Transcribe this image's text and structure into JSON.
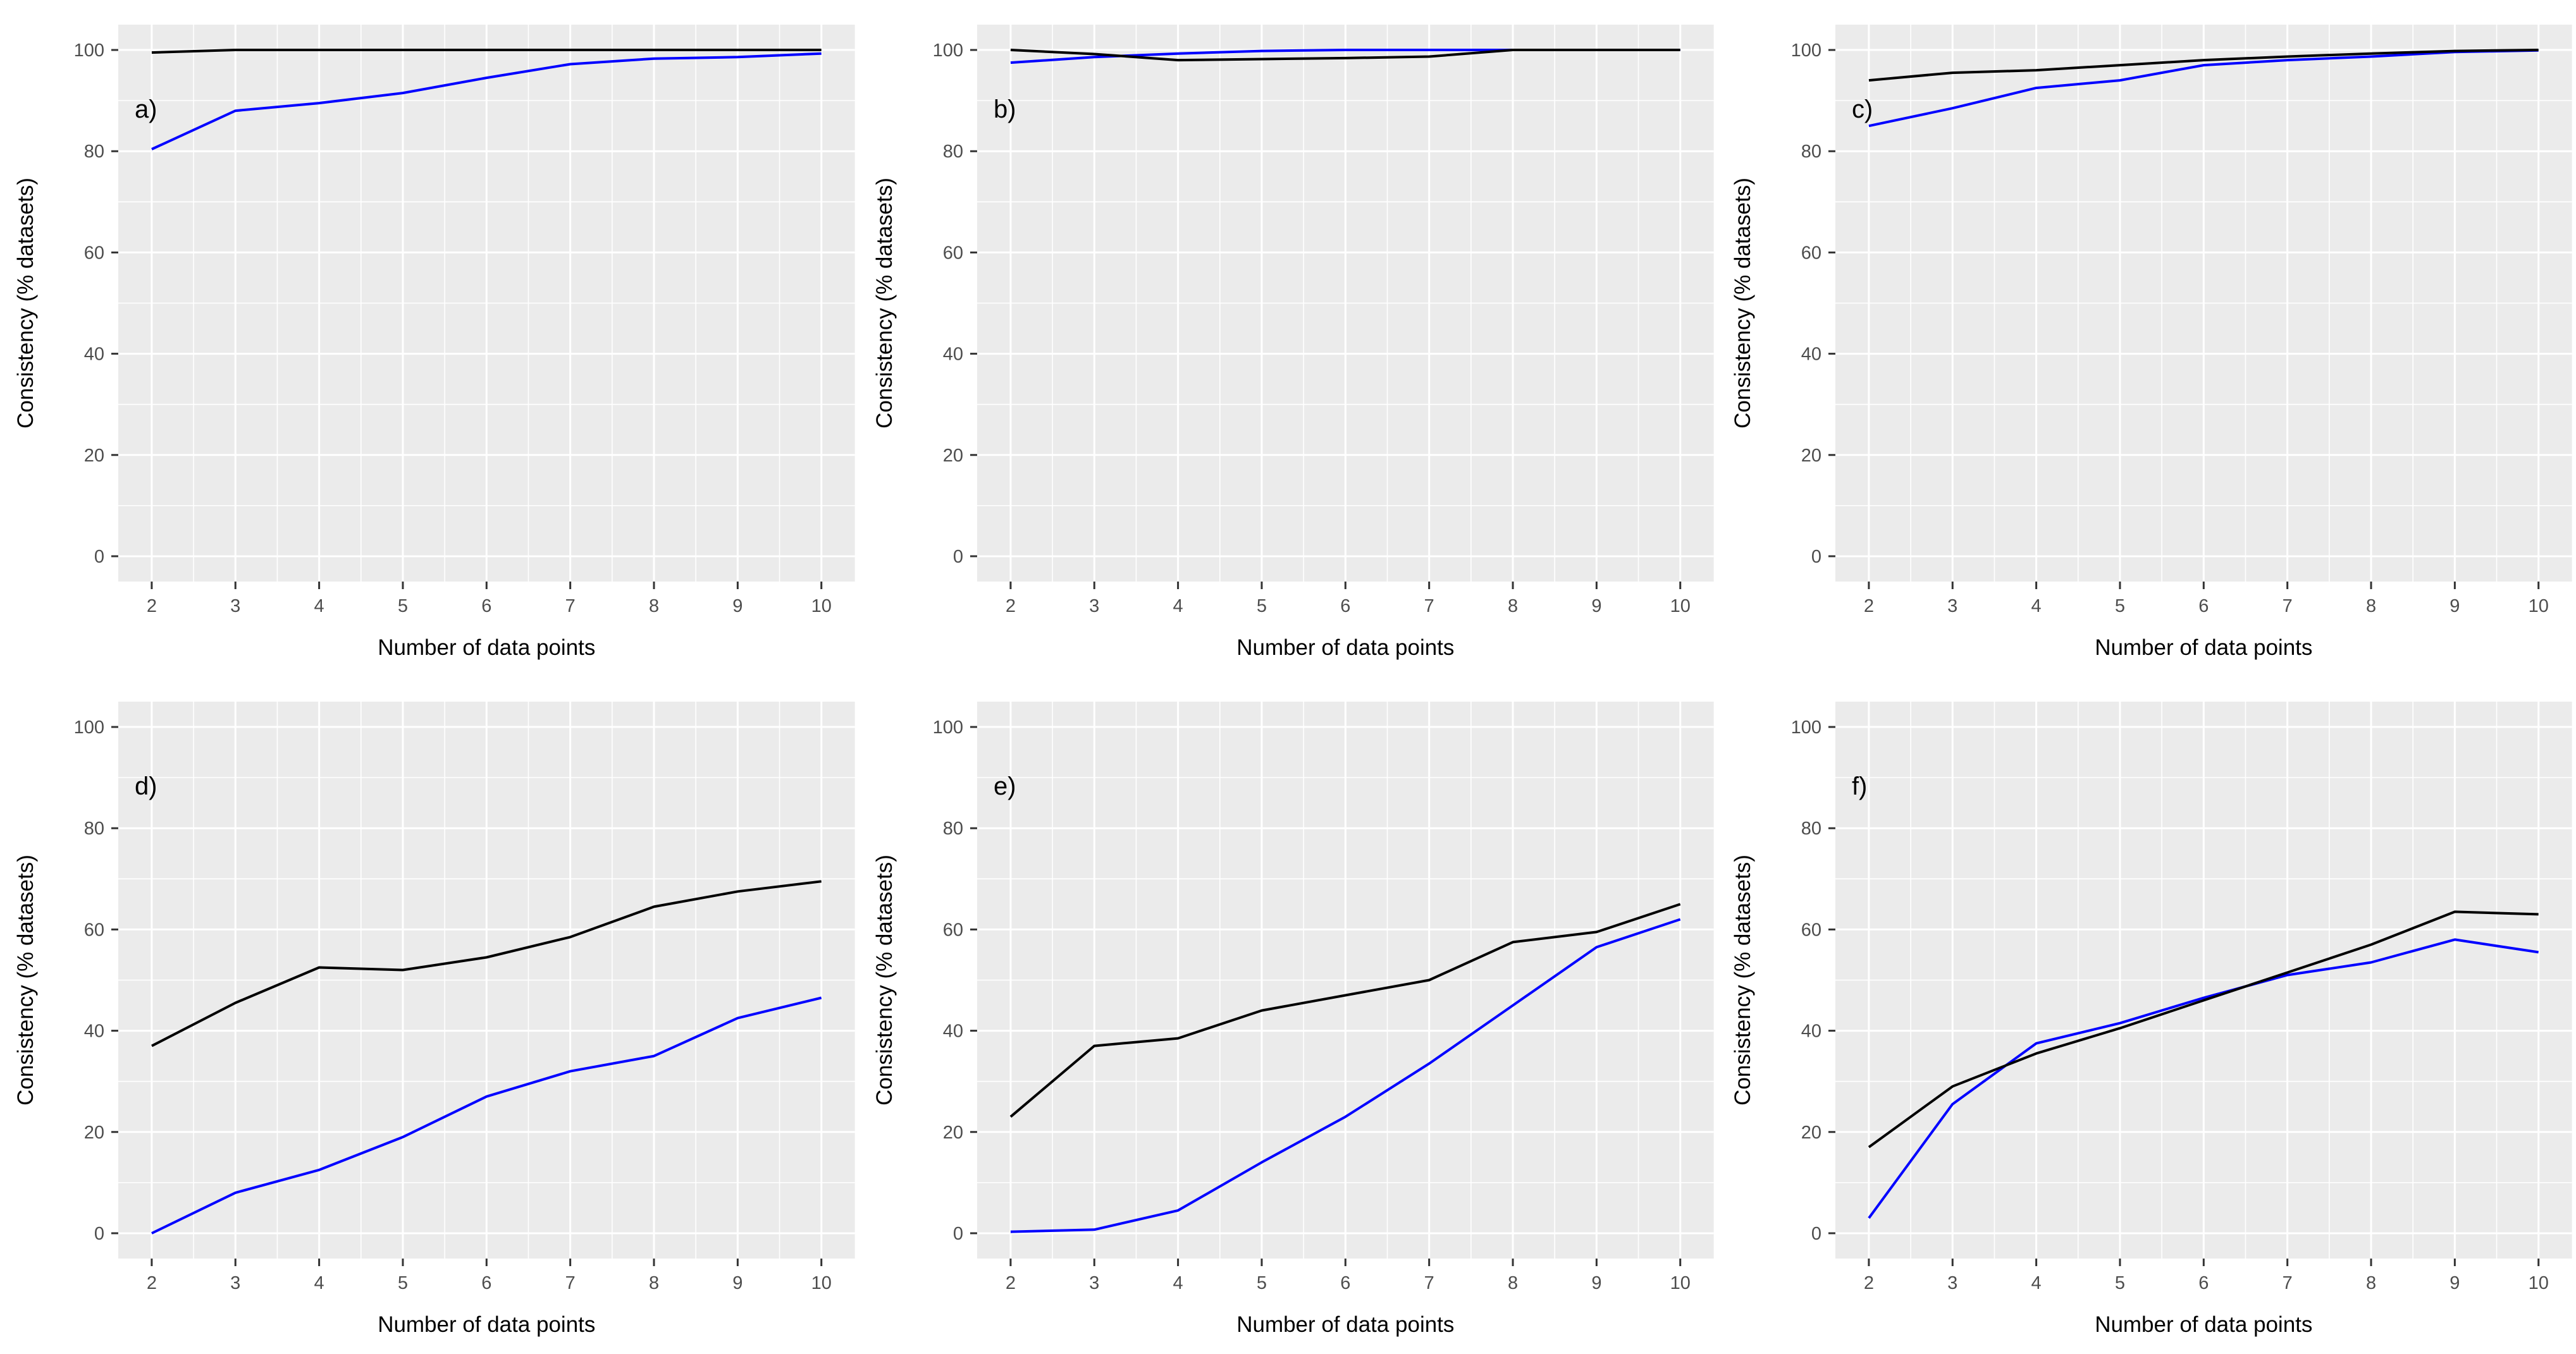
{
  "figure": {
    "background": "#FFFFFF",
    "panel_background": "#EBEBEB",
    "grid_color": "#FFFFFF",
    "tick_mark_color": "#333333",
    "tick_label_color": "#4D4D4D",
    "axis_title_color": "#000000",
    "panel_label_color": "#000000",
    "x_axis_title": "Number of data points",
    "y_axis_title": "Consistency (% datasets)"
  },
  "chart_data": [
    {
      "type": "line",
      "panel_label": "a)",
      "title": "",
      "xlabel": "Number of data points",
      "ylabel": "Consistency (% datasets)",
      "x": [
        2,
        3,
        4,
        5,
        6,
        7,
        8,
        9,
        10
      ],
      "x_ticks": [
        2,
        3,
        4,
        5,
        6,
        7,
        8,
        9,
        10
      ],
      "y_ticks": [
        0,
        20,
        40,
        60,
        80,
        100
      ],
      "xlim": [
        2,
        10
      ],
      "ylim": [
        0,
        100
      ],
      "grid": true,
      "legend": "none",
      "series": [
        {
          "name": "blue line",
          "color": "#0000FF",
          "values": [
            80.4,
            88,
            89.5,
            91.5,
            94.5,
            97.2,
            98.3,
            98.6,
            99.3
          ]
        },
        {
          "name": "black line",
          "color": "#000000",
          "values": [
            99.5,
            100,
            100,
            100,
            100,
            100,
            100,
            100,
            100
          ]
        }
      ]
    },
    {
      "type": "line",
      "panel_label": "b)",
      "title": "",
      "xlabel": "Number of data points",
      "ylabel": "Consistency (% datasets)",
      "x": [
        2,
        3,
        4,
        5,
        6,
        7,
        8,
        9,
        10
      ],
      "x_ticks": [
        2,
        3,
        4,
        5,
        6,
        7,
        8,
        9,
        10
      ],
      "y_ticks": [
        0,
        20,
        40,
        60,
        80,
        100
      ],
      "xlim": [
        2,
        10
      ],
      "ylim": [
        0,
        100
      ],
      "grid": true,
      "legend": "none",
      "series": [
        {
          "name": "blue line",
          "color": "#0000FF",
          "values": [
            97.5,
            98.6,
            99.3,
            99.8,
            100,
            100,
            100,
            100,
            100
          ]
        },
        {
          "name": "black line",
          "color": "#000000",
          "values": [
            100,
            99.2,
            98,
            98.2,
            98.4,
            98.7,
            100,
            100,
            100
          ]
        }
      ]
    },
    {
      "type": "line",
      "panel_label": "c)",
      "title": "",
      "xlabel": "Number of data points",
      "ylabel": "Consistency (% datasets)",
      "x": [
        2,
        3,
        4,
        5,
        6,
        7,
        8,
        9,
        10
      ],
      "x_ticks": [
        2,
        3,
        4,
        5,
        6,
        7,
        8,
        9,
        10
      ],
      "y_ticks": [
        0,
        20,
        40,
        60,
        80,
        100
      ],
      "xlim": [
        2,
        10
      ],
      "ylim": [
        0,
        100
      ],
      "grid": true,
      "legend": "none",
      "series": [
        {
          "name": "blue line",
          "color": "#0000FF",
          "values": [
            85,
            88.5,
            92.5,
            94,
            97,
            98,
            98.7,
            99.6,
            99.9
          ]
        },
        {
          "name": "black line",
          "color": "#000000",
          "values": [
            94,
            95.5,
            96,
            97,
            98,
            98.7,
            99.3,
            99.8,
            100
          ]
        }
      ]
    },
    {
      "type": "line",
      "panel_label": "d)",
      "title": "",
      "xlabel": "Number of data points",
      "ylabel": "Consistency (% datasets)",
      "x": [
        2,
        3,
        4,
        5,
        6,
        7,
        8,
        9,
        10
      ],
      "x_ticks": [
        2,
        3,
        4,
        5,
        6,
        7,
        8,
        9,
        10
      ],
      "y_ticks": [
        0,
        20,
        40,
        60,
        80,
        100
      ],
      "xlim": [
        2,
        10
      ],
      "ylim": [
        0,
        100
      ],
      "grid": true,
      "legend": "none",
      "series": [
        {
          "name": "blue line",
          "color": "#0000FF",
          "values": [
            0,
            8,
            12.5,
            19,
            27,
            32,
            35,
            42.5,
            46.5
          ]
        },
        {
          "name": "black line",
          "color": "#000000",
          "values": [
            37,
            45.5,
            52.5,
            52,
            54.5,
            58.5,
            64.5,
            67.5,
            69.5
          ]
        }
      ]
    },
    {
      "type": "line",
      "panel_label": "e)",
      "title": "",
      "xlabel": "Number of data points",
      "ylabel": "Consistency (% datasets)",
      "x": [
        2,
        3,
        4,
        5,
        6,
        7,
        8,
        9,
        10
      ],
      "x_ticks": [
        2,
        3,
        4,
        5,
        6,
        7,
        8,
        9,
        10
      ],
      "y_ticks": [
        0,
        20,
        40,
        60,
        80,
        100
      ],
      "xlim": [
        2,
        10
      ],
      "ylim": [
        0,
        100
      ],
      "grid": true,
      "legend": "none",
      "series": [
        {
          "name": "blue line",
          "color": "#0000FF",
          "values": [
            0.3,
            0.7,
            4.5,
            14,
            23,
            33.5,
            45,
            56.5,
            62
          ]
        },
        {
          "name": "black line",
          "color": "#000000",
          "values": [
            23,
            37,
            38.5,
            44,
            47,
            50,
            57.5,
            59.5,
            65
          ]
        }
      ]
    },
    {
      "type": "line",
      "panel_label": "f)",
      "title": "",
      "xlabel": "Number of data points",
      "ylabel": "Consistency (% datasets)",
      "x": [
        2,
        3,
        4,
        5,
        6,
        7,
        8,
        9,
        10
      ],
      "x_ticks": [
        2,
        3,
        4,
        5,
        6,
        7,
        8,
        9,
        10
      ],
      "y_ticks": [
        0,
        20,
        40,
        60,
        80,
        100
      ],
      "xlim": [
        2,
        10
      ],
      "ylim": [
        0,
        100
      ],
      "grid": true,
      "legend": "none",
      "series": [
        {
          "name": "blue line",
          "color": "#0000FF",
          "values": [
            3,
            25.5,
            37.5,
            41.5,
            46.5,
            51,
            53.5,
            58,
            55.5
          ]
        },
        {
          "name": "black line",
          "color": "#000000",
          "values": [
            17,
            29,
            35.5,
            40.5,
            46,
            51.5,
            57,
            63.5,
            63
          ]
        }
      ]
    }
  ]
}
